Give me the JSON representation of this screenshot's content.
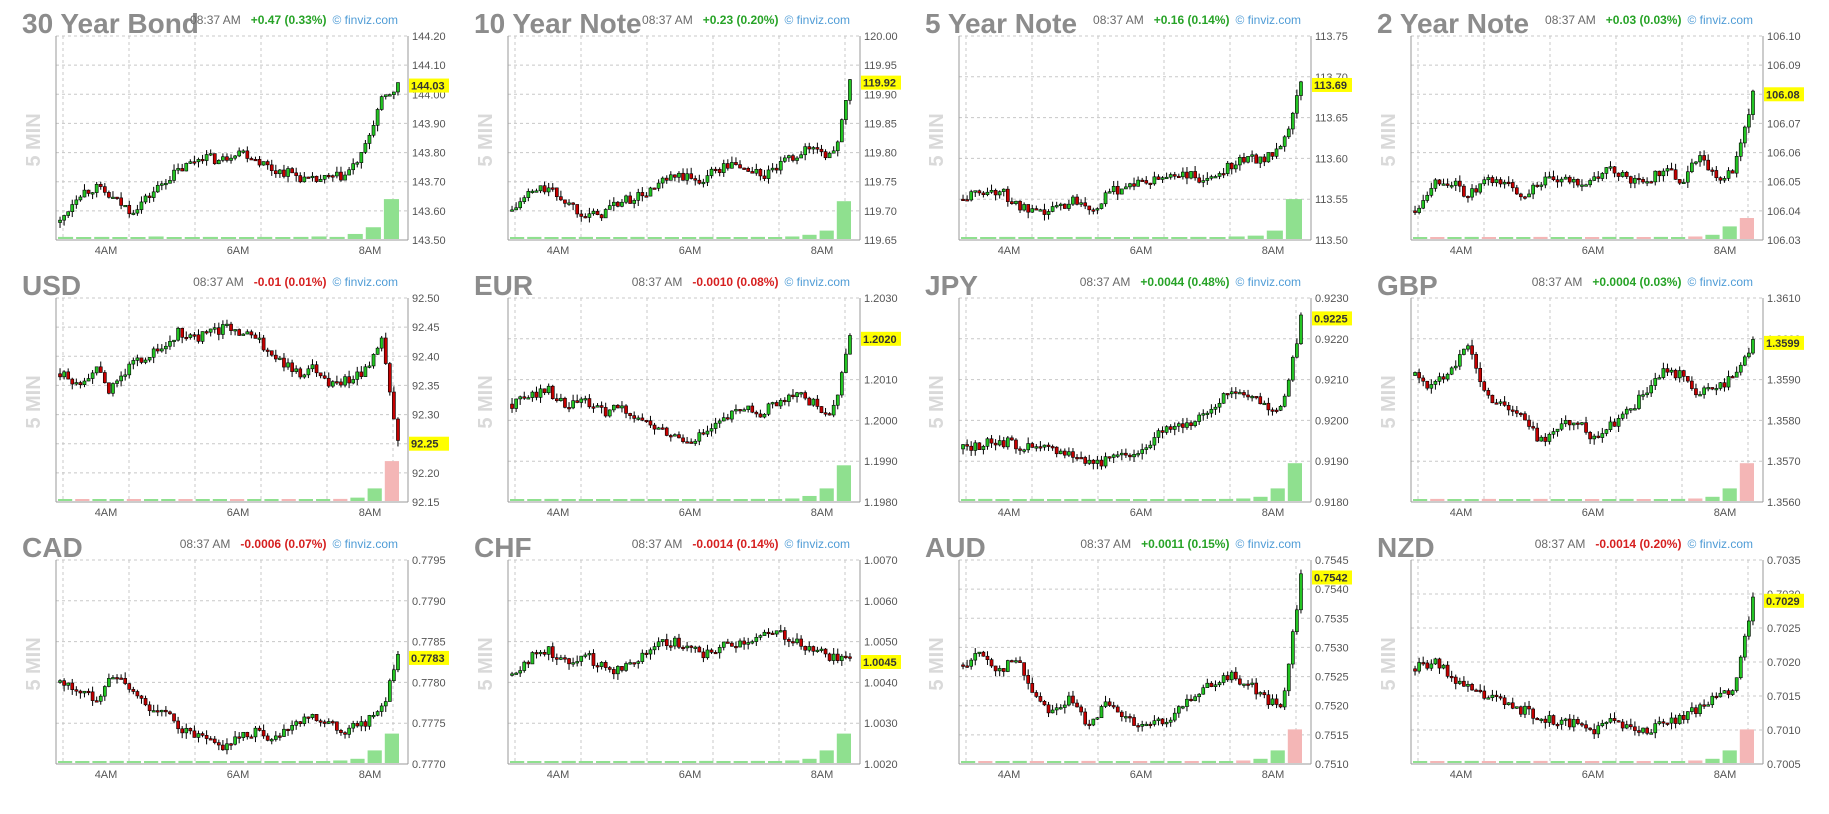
{
  "charts": [
    {
      "title": "30 Year Bond",
      "time": "08:37 AM",
      "change": "+0.47 (0.33%)",
      "dir": "up",
      "source": "finviz.com",
      "period": "5 MIN",
      "yticks": [
        "144.20",
        "144.10",
        "144.00",
        "143.90",
        "143.80",
        "143.70",
        "143.60",
        "143.50"
      ],
      "ymin": 143.5,
      "ymax": 144.2,
      "last": "144.03",
      "lastv": 144.03,
      "xticks": [
        "4AM",
        "6AM",
        "8AM"
      ],
      "path": [
        143.56,
        143.66,
        143.68,
        143.64,
        143.6,
        143.65,
        143.71,
        143.75,
        143.79,
        143.77,
        143.81,
        143.78,
        143.74,
        143.73,
        143.7,
        143.71,
        143.72,
        143.79,
        143.97,
        144.03
      ],
      "vol": [
        0.05,
        0.04,
        0.05,
        0.03,
        0.04,
        0.06,
        0.03,
        0.04,
        0.05,
        0.03,
        0.04,
        0.05,
        0.04,
        0.05,
        0.06,
        0.05,
        0.12,
        0.28,
        0.95
      ],
      "volneg": false
    },
    {
      "title": "10 Year Note",
      "time": "08:37 AM",
      "change": "+0.23 (0.20%)",
      "dir": "up",
      "source": "finviz.com",
      "period": "5 MIN",
      "yticks": [
        "120.00",
        "119.95",
        "119.90",
        "119.85",
        "119.80",
        "119.75",
        "119.70",
        "119.65"
      ],
      "ymin": 119.65,
      "ymax": 120.0,
      "last": "119.92",
      "lastv": 119.92,
      "xticks": [
        "4AM",
        "6AM",
        "8AM"
      ],
      "path": [
        119.7,
        119.73,
        119.74,
        119.72,
        119.7,
        119.69,
        119.71,
        119.72,
        119.73,
        119.75,
        119.76,
        119.75,
        119.77,
        119.78,
        119.77,
        119.76,
        119.78,
        119.8,
        119.81,
        119.79,
        119.92
      ],
      "vol": [
        0.04,
        0.05,
        0.03,
        0.04,
        0.05,
        0.04,
        0.03,
        0.05,
        0.04,
        0.03,
        0.04,
        0.05,
        0.04,
        0.03,
        0.05,
        0.04,
        0.06,
        0.1,
        0.2,
        0.9
      ],
      "volneg": false
    },
    {
      "title": "5 Year Note",
      "time": "08:37 AM",
      "change": "+0.16 (0.14%)",
      "dir": "up",
      "source": "finviz.com",
      "period": "5 MIN",
      "yticks": [
        "113.75",
        "113.70",
        "113.65",
        "113.60",
        "113.55",
        "113.50"
      ],
      "ymin": 113.5,
      "ymax": 113.75,
      "last": "113.69",
      "lastv": 113.69,
      "xticks": [
        "4AM",
        "6AM",
        "8AM"
      ],
      "path": [
        113.55,
        113.56,
        113.56,
        113.54,
        113.53,
        113.54,
        113.55,
        113.54,
        113.56,
        113.57,
        113.57,
        113.58,
        113.58,
        113.57,
        113.59,
        113.6,
        113.6,
        113.61,
        113.69
      ],
      "vol": [
        0.04,
        0.03,
        0.05,
        0.04,
        0.03,
        0.04,
        0.05,
        0.03,
        0.04,
        0.05,
        0.04,
        0.03,
        0.05,
        0.04,
        0.06,
        0.08,
        0.2,
        0.95
      ],
      "volneg": false
    },
    {
      "title": "2 Year Note",
      "time": "08:37 AM",
      "change": "+0.03 (0.03%)",
      "dir": "up",
      "source": "finviz.com",
      "period": "5 MIN",
      "yticks": [
        "106.10",
        "106.09",
        "106.08",
        "106.07",
        "106.06",
        "106.05",
        "106.04",
        "106.03"
      ],
      "ymin": 106.03,
      "ymax": 106.1,
      "last": "106.08",
      "lastv": 106.08,
      "xticks": [
        "4AM",
        "6AM",
        "8AM"
      ],
      "path": [
        106.04,
        106.05,
        106.05,
        106.045,
        106.05,
        106.05,
        106.045,
        106.05,
        106.05,
        106.05,
        106.05,
        106.055,
        106.05,
        106.05,
        106.055,
        106.05,
        106.06,
        106.05,
        106.055,
        106.08
      ],
      "vol": [
        0.03,
        0.04,
        0.03,
        0.05,
        0.03,
        0.04,
        0.03,
        0.05,
        0.04,
        0.03,
        0.04,
        0.05,
        0.03,
        0.04,
        0.05,
        0.04,
        0.06,
        0.1,
        0.3,
        0.5
      ],
      "volneg": true
    },
    {
      "title": "USD",
      "time": "08:37 AM",
      "change": "-0.01 (0.01%)",
      "dir": "dn",
      "source": "finviz.com",
      "period": "5 MIN",
      "yticks": [
        "92.50",
        "92.45",
        "92.40",
        "92.35",
        "92.30",
        "92.25",
        "92.20",
        "92.15"
      ],
      "ymin": 92.15,
      "ymax": 92.5,
      "last": "92.25",
      "lastv": 92.25,
      "xticks": [
        "4AM",
        "6AM",
        "8AM"
      ],
      "path": [
        92.37,
        92.35,
        92.38,
        92.34,
        92.38,
        92.4,
        92.41,
        92.44,
        92.43,
        92.44,
        92.45,
        92.44,
        92.42,
        92.39,
        92.37,
        92.38,
        92.35,
        92.36,
        92.37,
        92.43,
        92.25
      ],
      "vol": [
        0.03,
        0.02,
        0.03,
        0.02,
        0.03,
        0.02,
        0.03,
        0.02,
        0.03,
        0.02,
        0.03,
        0.02,
        0.03,
        0.02,
        0.03,
        0.04,
        0.05,
        0.08,
        0.3,
        0.95
      ],
      "volneg": true
    },
    {
      "title": "EUR",
      "time": "08:37 AM",
      "change": "-0.0010 (0.08%)",
      "dir": "dn",
      "source": "finviz.com",
      "period": "5 MIN",
      "yticks": [
        "1.2030",
        "1.2020",
        "1.2010",
        "1.2000",
        "1.1990",
        "1.1980"
      ],
      "ymin": 1.198,
      "ymax": 1.203,
      "last": "1.2020",
      "lastv": 1.202,
      "xticks": [
        "4AM",
        "6AM",
        "8AM"
      ],
      "path": [
        1.2004,
        1.2006,
        1.2008,
        1.2003,
        1.2005,
        1.2002,
        1.2003,
        1.2001,
        1.1998,
        1.1996,
        1.1995,
        1.1997,
        1.2,
        1.2003,
        1.2002,
        1.2005,
        1.2007,
        1.2004,
        1.2001,
        1.202
      ],
      "vol": [
        0.04,
        0.03,
        0.05,
        0.04,
        0.03,
        0.04,
        0.03,
        0.05,
        0.04,
        0.03,
        0.04,
        0.05,
        0.04,
        0.03,
        0.05,
        0.04,
        0.06,
        0.12,
        0.3,
        0.85
      ],
      "volneg": false
    },
    {
      "title": "JPY",
      "time": "08:37 AM",
      "change": "+0.0044 (0.48%)",
      "dir": "up",
      "source": "finviz.com",
      "period": "5 MIN",
      "yticks": [
        "0.9230",
        "0.9220",
        "0.9210",
        "0.9200",
        "0.9190",
        "0.9180"
      ],
      "ymin": 0.918,
      "ymax": 0.923,
      "last": "0.9225",
      "lastv": 0.9225,
      "xticks": [
        "4AM",
        "6AM",
        "8AM"
      ],
      "path": [
        0.9193,
        0.9194,
        0.9195,
        0.9194,
        0.9193,
        0.9193,
        0.9192,
        0.919,
        0.919,
        0.9191,
        0.9193,
        0.9197,
        0.9199,
        0.92,
        0.9203,
        0.9207,
        0.9207,
        0.9204,
        0.9203,
        0.9225
      ],
      "vol": [
        0.04,
        0.05,
        0.03,
        0.04,
        0.05,
        0.03,
        0.04,
        0.05,
        0.03,
        0.04,
        0.03,
        0.04,
        0.05,
        0.03,
        0.04,
        0.05,
        0.06,
        0.1,
        0.3,
        0.9
      ],
      "volneg": false
    },
    {
      "title": "GBP",
      "time": "08:37 AM",
      "change": "+0.0004 (0.03%)",
      "dir": "up",
      "source": "finviz.com",
      "period": "5 MIN",
      "yticks": [
        "1.3610",
        "1.3600",
        "1.3590",
        "1.3580",
        "1.3570",
        "1.3560"
      ],
      "ymin": 1.356,
      "ymax": 1.361,
      "last": "1.3599",
      "lastv": 1.3599,
      "xticks": [
        "4AM",
        "6AM",
        "8AM"
      ],
      "path": [
        1.3591,
        1.3588,
        1.3593,
        1.3598,
        1.3586,
        1.3584,
        1.3581,
        1.3575,
        1.3578,
        1.358,
        1.3576,
        1.3579,
        1.3582,
        1.3587,
        1.3592,
        1.3591,
        1.3586,
        1.3589,
        1.359,
        1.3599
      ],
      "vol": [
        0.04,
        0.05,
        0.03,
        0.04,
        0.05,
        0.03,
        0.04,
        0.05,
        0.03,
        0.04,
        0.03,
        0.04,
        0.05,
        0.03,
        0.04,
        0.05,
        0.06,
        0.1,
        0.3,
        0.9
      ],
      "volneg": true
    },
    {
      "title": "CAD",
      "time": "08:37 AM",
      "change": "-0.0006 (0.07%)",
      "dir": "dn",
      "source": "finviz.com",
      "period": "5 MIN",
      "yticks": [
        "0.7795",
        "0.7790",
        "0.7785",
        "0.7780",
        "0.7775",
        "0.7770"
      ],
      "ymin": 0.777,
      "ymax": 0.7795,
      "last": "0.7783",
      "lastv": 0.7783,
      "xticks": [
        "4AM",
        "6AM",
        "8AM"
      ],
      "path": [
        0.778,
        0.7779,
        0.7778,
        0.7781,
        0.7779,
        0.7777,
        0.7776,
        0.7774,
        0.7773,
        0.7772,
        0.7773,
        0.7774,
        0.7773,
        0.7775,
        0.7776,
        0.7775,
        0.7774,
        0.7775,
        0.7776,
        0.7783
      ],
      "vol": [
        0.03,
        0.04,
        0.03,
        0.05,
        0.03,
        0.04,
        0.03,
        0.05,
        0.04,
        0.03,
        0.04,
        0.05,
        0.03,
        0.04,
        0.05,
        0.04,
        0.06,
        0.1,
        0.3,
        0.7
      ],
      "volneg": false
    },
    {
      "title": "CHF",
      "time": "08:37 AM",
      "change": "-0.0014 (0.14%)",
      "dir": "dn",
      "source": "finviz.com",
      "period": "5 MIN",
      "yticks": [
        "1.0070",
        "1.0060",
        "1.0050",
        "1.0040",
        "1.0030",
        "1.0020"
      ],
      "ymin": 1.002,
      "ymax": 1.007,
      "last": "1.0045",
      "lastv": 1.0045,
      "xticks": [
        "4AM",
        "6AM",
        "8AM"
      ],
      "path": [
        1.0042,
        1.0046,
        1.0048,
        1.0045,
        1.0047,
        1.0044,
        1.0043,
        1.0046,
        1.0049,
        1.005,
        1.0048,
        1.0047,
        1.0049,
        1.005,
        1.0051,
        1.0052,
        1.005,
        1.0048,
        1.0046,
        1.0045
      ],
      "vol": [
        0.03,
        0.04,
        0.03,
        0.05,
        0.03,
        0.04,
        0.03,
        0.05,
        0.04,
        0.03,
        0.04,
        0.05,
        0.03,
        0.04,
        0.05,
        0.04,
        0.06,
        0.1,
        0.3,
        0.7
      ],
      "volneg": false
    },
    {
      "title": "AUD",
      "time": "08:37 AM",
      "change": "+0.0011 (0.15%)",
      "dir": "up",
      "source": "finviz.com",
      "period": "5 MIN",
      "yticks": [
        "0.7545",
        "0.7540",
        "0.7535",
        "0.7530",
        "0.7525",
        "0.7520",
        "0.7515",
        "0.7510"
      ],
      "ymin": 0.751,
      "ymax": 0.7545,
      "last": "0.7542",
      "lastv": 0.7542,
      "xticks": [
        "4AM",
        "6AM",
        "8AM"
      ],
      "path": [
        0.7527,
        0.7529,
        0.7526,
        0.7528,
        0.7522,
        0.7519,
        0.7521,
        0.7517,
        0.752,
        0.7518,
        0.7516,
        0.7517,
        0.7519,
        0.7522,
        0.7524,
        0.7525,
        0.7524,
        0.7521,
        0.752,
        0.7542
      ],
      "vol": [
        0.03,
        0.04,
        0.03,
        0.05,
        0.03,
        0.04,
        0.03,
        0.05,
        0.04,
        0.03,
        0.04,
        0.05,
        0.03,
        0.04,
        0.05,
        0.04,
        0.06,
        0.1,
        0.3,
        0.8
      ],
      "volneg": true
    },
    {
      "title": "NZD",
      "time": "08:37 AM",
      "change": "-0.0014 (0.20%)",
      "dir": "dn",
      "source": "finviz.com",
      "period": "5 MIN",
      "yticks": [
        "0.7035",
        "0.7030",
        "0.7025",
        "0.7020",
        "0.7015",
        "0.7010",
        "0.7005"
      ],
      "ymin": 0.7005,
      "ymax": 0.7035,
      "last": "0.7029",
      "lastv": 0.7029,
      "xticks": [
        "4AM",
        "6AM",
        "8AM"
      ],
      "path": [
        0.7019,
        0.702,
        0.7018,
        0.7016,
        0.7015,
        0.7014,
        0.7013,
        0.7012,
        0.7011,
        0.7011,
        0.701,
        0.7011,
        0.701,
        0.701,
        0.7011,
        0.7012,
        0.7013,
        0.7015,
        0.7016,
        0.7029
      ],
      "vol": [
        0.03,
        0.04,
        0.03,
        0.05,
        0.03,
        0.04,
        0.03,
        0.05,
        0.04,
        0.03,
        0.04,
        0.05,
        0.03,
        0.04,
        0.05,
        0.04,
        0.06,
        0.1,
        0.3,
        0.8
      ],
      "volneg": true
    }
  ],
  "colors": {
    "up": "#23c423",
    "down": "#c40000",
    "grid": "#c8c8c8",
    "vol_up": "#8fe08f",
    "vol_down": "#f4b6b6",
    "last_bg": "#ffff00"
  }
}
